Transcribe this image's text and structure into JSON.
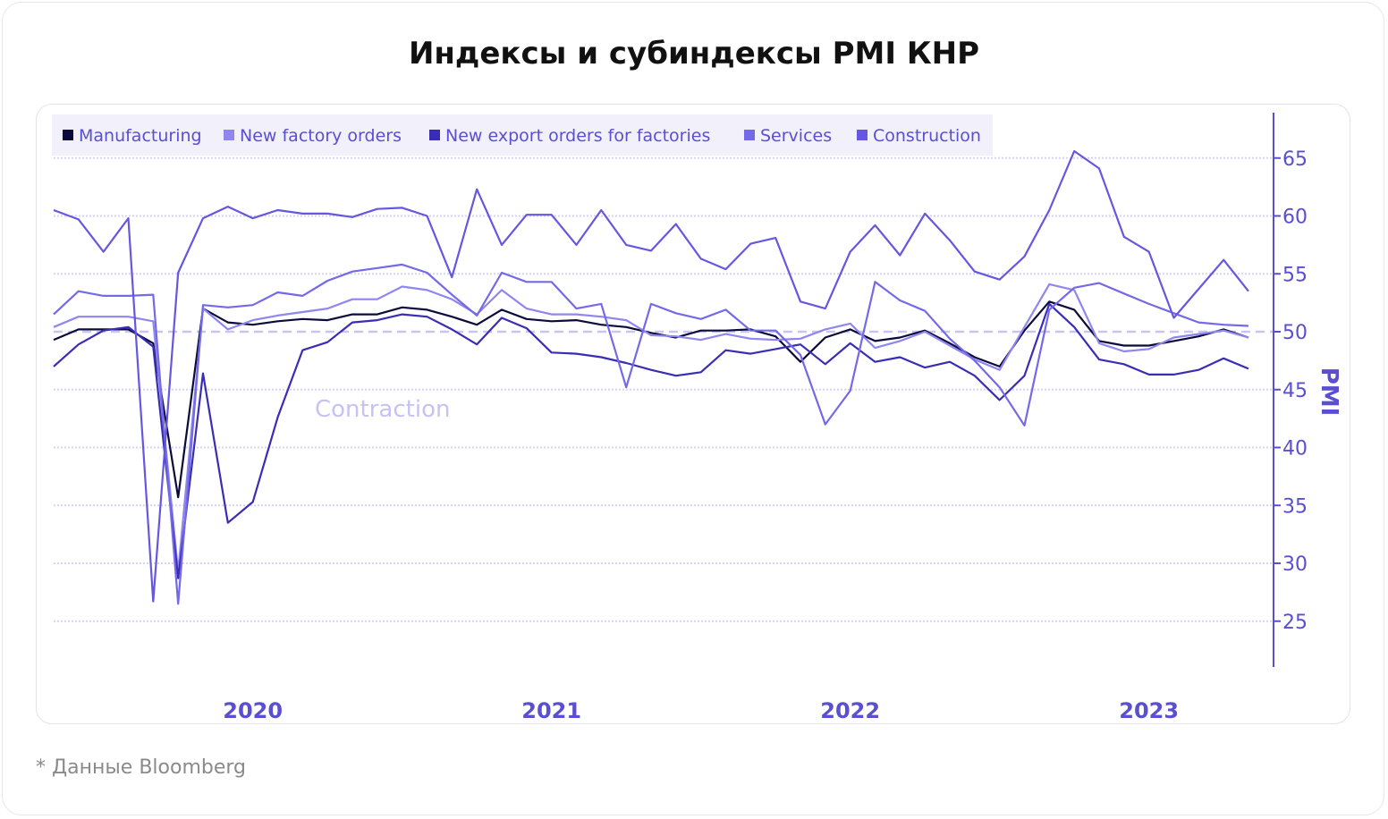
{
  "title": "Индексы и субиндексы PMI КНР",
  "footnote": "* Данные Bloomberg",
  "chart_data": {
    "type": "line",
    "title": "Индексы и субиндексы PMI КНР",
    "ylabel": "PMI",
    "xlabel": "",
    "ylim": [
      21,
      69
    ],
    "yticks": [
      25,
      30,
      35,
      40,
      45,
      50,
      55,
      60,
      65
    ],
    "ytick_labels": [
      "25",
      "30",
      "35",
      "40",
      "45",
      "50",
      "55",
      "60",
      "65"
    ],
    "x_ticks": [
      {
        "label": "2020",
        "at": 8
      },
      {
        "label": "2021",
        "at": 20
      },
      {
        "label": "2022",
        "at": 32
      },
      {
        "label": "2023",
        "at": 44
      }
    ],
    "reference_line": 50,
    "annotation": "Contraction",
    "grid": true,
    "legend_position": "top-left",
    "series": [
      {
        "name": "Manufacturing",
        "color": "#0b0b3a",
        "values": [
          49.3,
          50.2,
          50.2,
          50.2,
          49.0,
          35.7,
          52.0,
          50.8,
          50.6,
          50.9,
          51.1,
          51.0,
          51.5,
          51.5,
          52.1,
          51.9,
          51.3,
          50.6,
          51.9,
          51.1,
          50.9,
          51.0,
          50.6,
          50.4,
          49.9,
          49.5,
          50.1,
          50.1,
          50.2,
          49.6,
          47.4,
          49.5,
          50.2,
          49.2,
          49.5,
          50.1,
          49.0,
          47.8,
          47.0,
          50.1,
          52.6,
          51.9,
          49.2,
          48.8,
          48.8,
          49.2,
          49.6,
          50.2,
          49.5
        ]
      },
      {
        "name": "New factory orders",
        "color": "#8f86ee",
        "values": [
          50.4,
          51.3,
          51.3,
          51.3,
          50.9,
          29.3,
          52.0,
          50.2,
          51.0,
          51.4,
          51.7,
          52.0,
          52.8,
          52.8,
          53.9,
          53.6,
          52.8,
          51.5,
          53.6,
          52.0,
          51.5,
          51.5,
          51.3,
          51.0,
          49.7,
          49.6,
          49.3,
          49.8,
          49.4,
          49.3,
          49.4,
          50.2,
          50.7,
          48.6,
          49.2,
          50.0,
          48.8,
          47.6,
          46.7,
          50.4,
          54.1,
          53.6,
          49.0,
          48.3,
          48.5,
          49.5,
          49.8,
          50.1,
          49.5
        ]
      },
      {
        "name": "New export orders for factories",
        "color": "#3a2db5",
        "values": [
          47.0,
          48.9,
          50.1,
          50.4,
          48.7,
          28.7,
          46.4,
          33.5,
          35.3,
          42.6,
          48.4,
          49.1,
          50.8,
          51.0,
          51.5,
          51.3,
          50.2,
          48.9,
          51.2,
          50.3,
          48.2,
          48.1,
          47.8,
          47.3,
          46.7,
          46.2,
          46.5,
          48.4,
          48.1,
          48.5,
          48.9,
          47.2,
          49.0,
          47.4,
          47.8,
          46.9,
          47.4,
          46.2,
          44.1,
          46.2,
          52.4,
          50.4,
          47.6,
          47.2,
          46.3,
          46.3,
          46.7,
          47.7,
          46.8
        ]
      },
      {
        "name": "Services",
        "color": "#7469e6",
        "values": [
          51.5,
          53.5,
          53.1,
          53.1,
          53.2,
          26.5,
          52.3,
          52.1,
          52.3,
          53.4,
          53.1,
          54.4,
          55.2,
          55.5,
          55.8,
          55.1,
          53.2,
          51.4,
          55.1,
          54.3,
          54.3,
          52.0,
          52.4,
          45.2,
          52.4,
          51.6,
          51.1,
          51.9,
          50.1,
          50.1,
          48.0,
          42.0,
          44.9,
          54.3,
          52.7,
          51.8,
          49.4,
          47.5,
          45.2,
          41.9,
          51.9,
          53.8,
          54.2,
          53.3,
          52.4,
          51.6,
          50.8,
          50.6,
          50.5
        ]
      },
      {
        "name": "Construction",
        "color": "#6557df",
        "values": [
          60.5,
          59.7,
          56.9,
          59.8,
          26.7,
          55.1,
          59.8,
          60.8,
          59.8,
          60.5,
          60.2,
          60.2,
          59.9,
          60.6,
          60.7,
          60.0,
          54.7,
          62.3,
          57.5,
          60.1,
          60.1,
          57.5,
          60.5,
          57.5,
          57.0,
          59.3,
          56.3,
          55.4,
          57.6,
          58.1,
          52.6,
          52.0,
          56.9,
          59.2,
          56.6,
          60.2,
          57.9,
          55.2,
          54.5,
          56.5,
          60.5,
          65.6,
          64.1,
          58.2,
          56.9,
          51.2,
          53.7,
          56.2,
          53.5
        ]
      }
    ]
  }
}
